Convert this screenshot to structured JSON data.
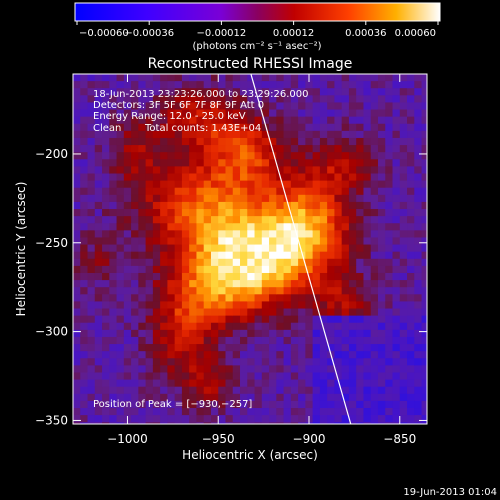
{
  "colorbar": {
    "ticks": [
      "−0.00060",
      "−0.00036",
      "−0.00012",
      "0.00012",
      "0.00036",
      "0.00060"
    ],
    "unit_label": "(photons cm⁻² s⁻¹ asec⁻²)",
    "range": [
      -0.0006,
      0.0006
    ]
  },
  "chart_data": {
    "type": "heatmap",
    "title": "Reconstructed RHESSI Image",
    "xlabel": "Heliocentric X (arcsec)",
    "ylabel": "Heliocentric Y (arcsec)",
    "xlim": [
      -1030,
      -835
    ],
    "ylim": [
      -352,
      -155
    ],
    "x_ticks": [
      -1000,
      -950,
      -900,
      -850
    ],
    "y_ticks": [
      -200,
      -250,
      -300,
      -350
    ],
    "x_tick_labels": [
      "−1000",
      "−950",
      "−900",
      "−850"
    ],
    "y_tick_labels": [
      "−200",
      "−250",
      "−300",
      "−350"
    ],
    "grid": false,
    "peak": {
      "x": -930,
      "y": -257
    },
    "limb_line": [
      [
        -932,
        -155
      ],
      [
        -877,
        -352
      ]
    ]
  },
  "annotations": {
    "time_range": "18-Jun-2013 23:23:26.000 to 23:29:26.000",
    "detectors": "Detectors: 3F 5F 6F 7F 8F 9F Att 0",
    "energy_range": "Energy Range: 12.0 - 25.0 keV",
    "clean_label": "Clean",
    "total_counts": "Total counts: 1.43E+04",
    "peak_position": "Position of Peak = [−930,−257]"
  },
  "footer": {
    "timestamp": "19-Jun-2013 01:04"
  }
}
